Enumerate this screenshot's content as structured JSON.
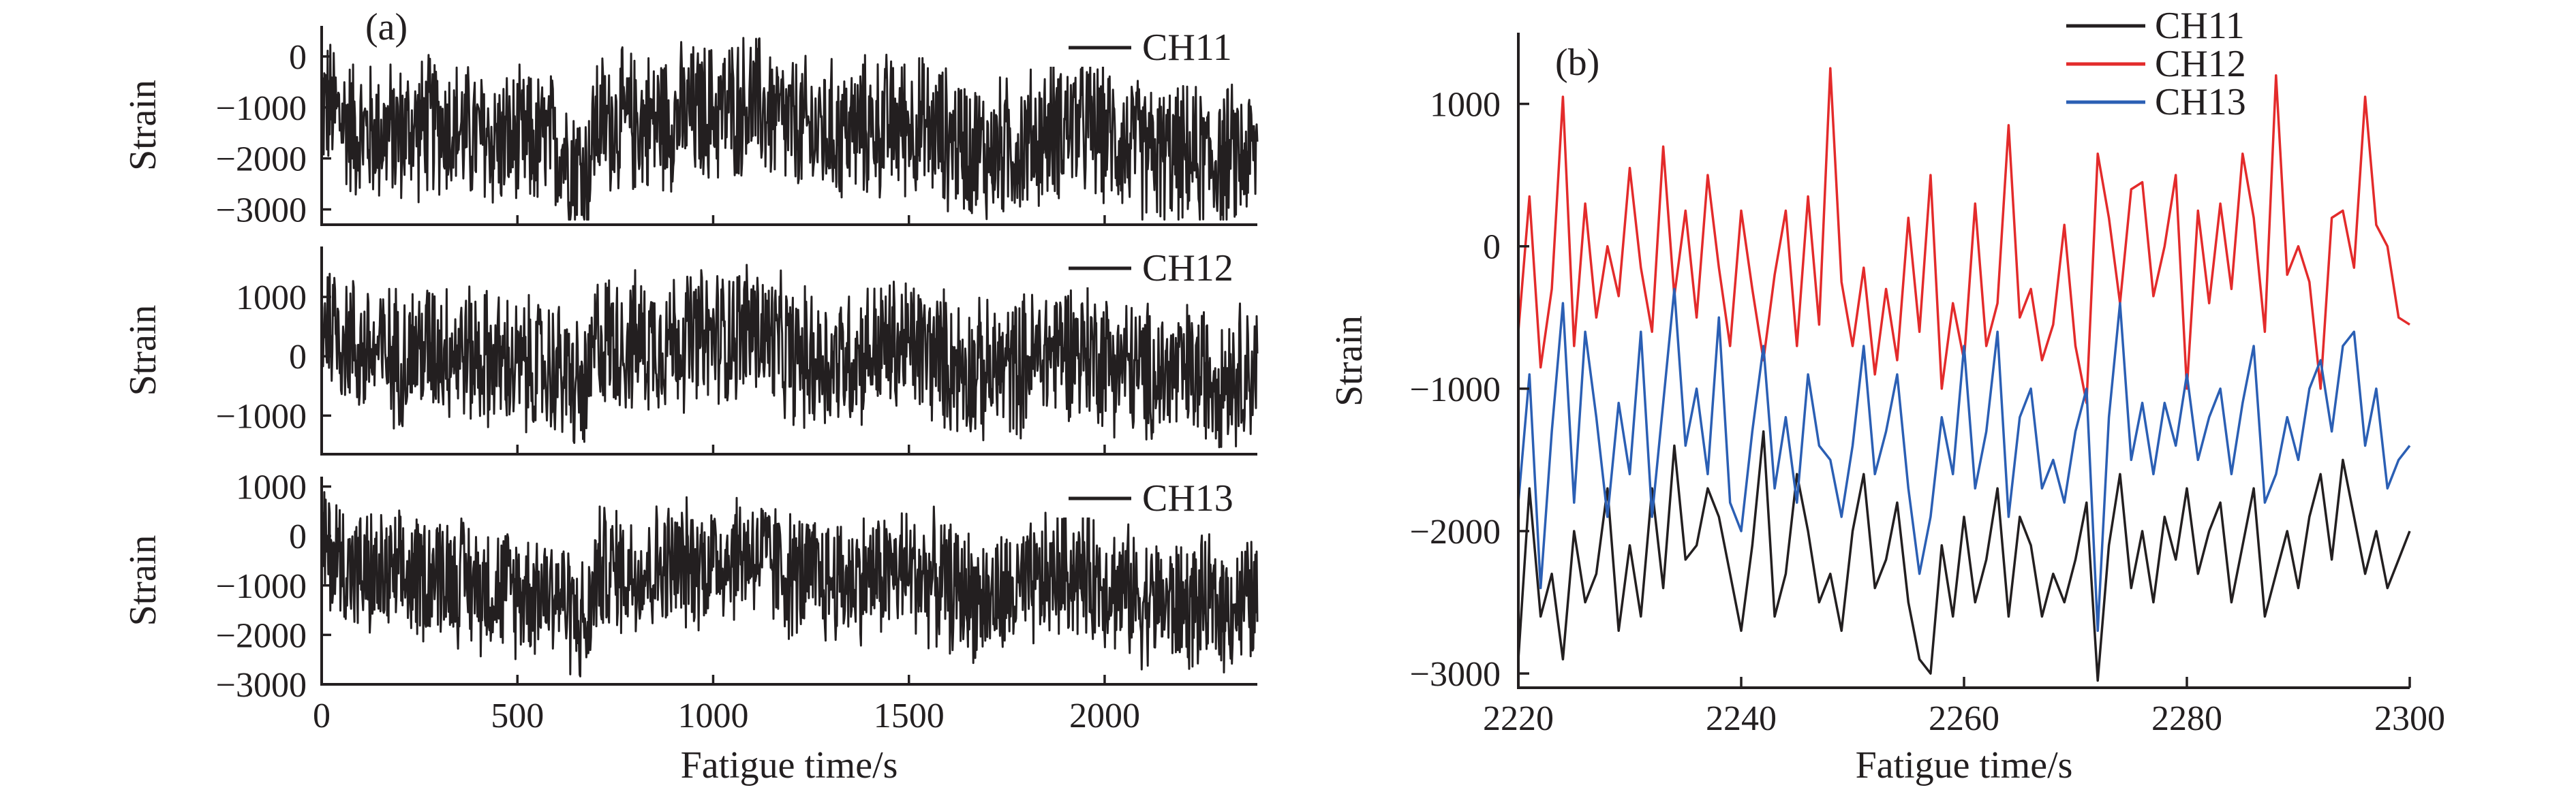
{
  "chart_data": [
    {
      "id": "a",
      "type": "line",
      "panel_label": "(a)",
      "xlabel": "Fatigue time/s",
      "xlim": [
        0,
        2390
      ],
      "xticks": [
        0,
        500,
        1000,
        1500,
        2000
      ],
      "subplots": [
        {
          "series_name": "CH11",
          "ylabel": "Strain",
          "ylim": [
            -3300,
            600
          ],
          "yticks": [
            -3000,
            -2000,
            -1000,
            0
          ],
          "tick_labels": [
            "−3000",
            "−2000",
            "−1000",
            "0"
          ],
          "color": "#231f20",
          "mean_trend": {
            "x": [
              0,
              100,
              200,
              300,
              400,
              500,
              600,
              680,
              700,
              800,
              900,
              1000,
              1100,
              1200,
              1300,
              1400,
              1500,
              1600,
              1700,
              1800,
              1900,
              2000,
              2100,
              2200,
              2300,
              2390
            ],
            "y": [
              -900,
              -1500,
              -1500,
              -1300,
              -1600,
              -1700,
              -1700,
              -2300,
              -1300,
              -1300,
              -1200,
              -1100,
              -900,
              -1400,
              -1500,
              -1400,
              -1300,
              -1600,
              -1900,
              -1700,
              -1300,
              -1500,
              -1900,
              -2000,
              -2000,
              -1900
            ]
          },
          "amplitude": 1600,
          "value_range": [
            -3200,
            400
          ]
        },
        {
          "series_name": "CH12",
          "ylabel": "Strain",
          "ylim": [
            -1650,
            1850
          ],
          "yticks": [
            -1000,
            0,
            1000
          ],
          "tick_labels": [
            "−1000",
            "0",
            "1000"
          ],
          "color": "#231f20",
          "mean_trend": {
            "x": [
              0,
              100,
              200,
              300,
              400,
              500,
              600,
              680,
              700,
              800,
              900,
              1000,
              1100,
              1200,
              1300,
              1400,
              1500,
              1600,
              1700,
              1800,
              1900,
              2000,
              2100,
              2200,
              2300,
              2390
            ],
            "y": [
              700,
              100,
              0,
              200,
              0,
              -200,
              -200,
              -700,
              300,
              200,
              300,
              300,
              500,
              0,
              -100,
              100,
              200,
              -100,
              -300,
              -100,
              200,
              0,
              -300,
              -300,
              -300,
              -200
            ]
          },
          "amplitude": 1350,
          "value_range": [
            -1600,
            1750
          ]
        },
        {
          "series_name": "CH13",
          "ylabel": "Strain",
          "ylim": [
            -3000,
            1200
          ],
          "yticks": [
            -3000,
            -2000,
            -1000,
            0,
            1000
          ],
          "tick_labels": [
            "−3000",
            "−2000",
            "−1000",
            "0",
            "1000"
          ],
          "color": "#231f20",
          "mean_trend": {
            "x": [
              0,
              100,
              200,
              300,
              400,
              500,
              600,
              680,
              700,
              800,
              900,
              1000,
              1100,
              1200,
              1300,
              1400,
              1500,
              1600,
              1700,
              1800,
              1900,
              2000,
              2100,
              2200,
              2300,
              2390
            ],
            "y": [
              -200,
              -800,
              -900,
              -700,
              -1000,
              -1100,
              -1100,
              -1900,
              -700,
              -700,
              -600,
              -500,
              -300,
              -800,
              -900,
              -800,
              -700,
              -1000,
              -1300,
              -1100,
              -700,
              -900,
              -1300,
              -1400,
              -1400,
              -1300
            ]
          },
          "amplitude": 1500,
          "value_range": [
            -2950,
            1000
          ]
        }
      ],
      "tick_labels_x": [
        "0",
        "500",
        "1000",
        "1500",
        "2000"
      ]
    },
    {
      "id": "b",
      "type": "line",
      "panel_label": "(b)",
      "xlabel": "Fatigue time/s",
      "ylabel": "Strain",
      "xlim": [
        2220,
        2300
      ],
      "ylim": [
        -3100,
        1500
      ],
      "xticks": [
        2220,
        2240,
        2260,
        2280,
        2300
      ],
      "yticks": [
        -3000,
        -2000,
        -1000,
        0,
        1000
      ],
      "tick_labels_x": [
        "2220",
        "2240",
        "2260",
        "2280",
        "2300"
      ],
      "tick_labels_y": [
        "−3000",
        "−2000",
        "−1000",
        "0",
        "1000"
      ],
      "legend_position": "top-right",
      "series": [
        {
          "name": "CH11",
          "color": "#231f20",
          "x": [
            2220,
            2221,
            2222,
            2223,
            2224,
            2225,
            2226,
            2227,
            2228,
            2229,
            2230,
            2231,
            2232,
            2233,
            2234,
            2235,
            2236,
            2237,
            2238,
            2239,
            2240,
            2241,
            2242,
            2243,
            2244,
            2245,
            2246,
            2247,
            2248,
            2249,
            2250,
            2251,
            2252,
            2253,
            2254,
            2255,
            2256,
            2257,
            2258,
            2259,
            2260,
            2261,
            2262,
            2263,
            2264,
            2265,
            2266,
            2267,
            2268,
            2269,
            2270,
            2271,
            2272,
            2273,
            2274,
            2275,
            2276,
            2277,
            2278,
            2279,
            2280,
            2281,
            2282,
            2283,
            2284,
            2285,
            2286,
            2287,
            2288,
            2289,
            2290,
            2291,
            2292,
            2293,
            2294,
            2295,
            2296,
            2297,
            2298,
            2299,
            2300
          ],
          "y": [
            -2900,
            -1700,
            -2600,
            -2300,
            -2900,
            -2000,
            -2500,
            -2300,
            -1700,
            -2700,
            -2100,
            -2600,
            -1700,
            -2400,
            -1400,
            -2200,
            -2100,
            -1700,
            -1900,
            -2300,
            -2700,
            -2100,
            -1300,
            -2600,
            -2300,
            -1600,
            -2000,
            -2500,
            -2300,
            -2700,
            -2000,
            -1600,
            -2400,
            -2200,
            -1800,
            -2500,
            -2900,
            -3000,
            -2100,
            -2600,
            -1900,
            -2500,
            -2200,
            -1700,
            -2600,
            -1900,
            -2100,
            -2600,
            -2300,
            -2500,
            -2200,
            -1800,
            -3050,
            -2100,
            -1600,
            -2400,
            -2000,
            -2500,
            -1900,
            -2200,
            -1700,
            -2300,
            -2000,
            -1800,
            -2500,
            -2100,
            -1700,
            -2600,
            -2300,
            -2000,
            -2400,
            -1900,
            -1600,
            -2200,
            -1500,
            -1900,
            -2300,
            -2000,
            -2400,
            -2200,
            -2000
          ]
        },
        {
          "name": "CH12",
          "color": "#e32b2b",
          "x": [
            2220,
            2221,
            2222,
            2223,
            2224,
            2225,
            2226,
            2227,
            2228,
            2229,
            2230,
            2231,
            2232,
            2233,
            2234,
            2235,
            2236,
            2237,
            2238,
            2239,
            2240,
            2241,
            2242,
            2243,
            2244,
            2245,
            2246,
            2247,
            2248,
            2249,
            2250,
            2251,
            2252,
            2253,
            2254,
            2255,
            2256,
            2257,
            2258,
            2259,
            2260,
            2261,
            2262,
            2263,
            2264,
            2265,
            2266,
            2267,
            2268,
            2269,
            2270,
            2271,
            2272,
            2273,
            2274,
            2275,
            2276,
            2277,
            2278,
            2279,
            2280,
            2281,
            2282,
            2283,
            2284,
            2285,
            2286,
            2287,
            2288,
            2289,
            2290,
            2291,
            2292,
            2293,
            2294,
            2295,
            2296,
            2297,
            2298,
            2299,
            2300
          ],
          "y": [
            -600,
            350,
            -850,
            -300,
            1050,
            -700,
            300,
            -500,
            0,
            -350,
            550,
            -150,
            -600,
            700,
            -350,
            250,
            -500,
            500,
            -150,
            -700,
            250,
            -300,
            -800,
            -200,
            250,
            -700,
            350,
            -550,
            1250,
            -250,
            -700,
            -150,
            -900,
            -300,
            -800,
            200,
            -600,
            500,
            -1000,
            -400,
            -800,
            300,
            -700,
            -400,
            850,
            -500,
            -300,
            -800,
            -550,
            150,
            -700,
            -1100,
            650,
            200,
            -400,
            400,
            450,
            -350,
            0,
            500,
            -1000,
            250,
            -400,
            300,
            -300,
            650,
            200,
            -600,
            1200,
            -200,
            0,
            -250,
            -1000,
            200,
            250,
            -150,
            1050,
            150,
            0,
            -500,
            -550
          ]
        },
        {
          "name": "CH13",
          "color": "#2b5fb4",
          "x": [
            2220,
            2221,
            2222,
            2223,
            2224,
            2225,
            2226,
            2227,
            2228,
            2229,
            2230,
            2231,
            2232,
            2233,
            2234,
            2235,
            2236,
            2237,
            2238,
            2239,
            2240,
            2241,
            2242,
            2243,
            2244,
            2245,
            2246,
            2247,
            2248,
            2249,
            2250,
            2251,
            2252,
            2253,
            2254,
            2255,
            2256,
            2257,
            2258,
            2259,
            2260,
            2261,
            2262,
            2263,
            2264,
            2265,
            2266,
            2267,
            2268,
            2269,
            2270,
            2271,
            2272,
            2273,
            2274,
            2275,
            2276,
            2277,
            2278,
            2279,
            2280,
            2281,
            2282,
            2283,
            2284,
            2285,
            2286,
            2287,
            2288,
            2289,
            2290,
            2291,
            2292,
            2293,
            2294,
            2295,
            2296,
            2297,
            2298,
            2299,
            2300
          ],
          "y": [
            -1800,
            -900,
            -2400,
            -1300,
            -400,
            -1800,
            -600,
            -1200,
            -1900,
            -1100,
            -1600,
            -600,
            -1900,
            -1100,
            -300,
            -1400,
            -1000,
            -1600,
            -500,
            -1800,
            -2000,
            -1300,
            -700,
            -1700,
            -1200,
            -1800,
            -900,
            -1400,
            -1500,
            -1900,
            -1400,
            -700,
            -1600,
            -1300,
            -900,
            -1700,
            -2300,
            -1900,
            -1200,
            -1600,
            -700,
            -1700,
            -1300,
            -600,
            -1900,
            -1200,
            -1000,
            -1700,
            -1500,
            -1800,
            -1300,
            -1000,
            -2700,
            -1200,
            -400,
            -1500,
            -1100,
            -1600,
            -1100,
            -1400,
            -900,
            -1500,
            -1200,
            -1000,
            -1600,
            -1100,
            -700,
            -1800,
            -1600,
            -1200,
            -1500,
            -1000,
            -800,
            -1300,
            -700,
            -600,
            -1400,
            -1000,
            -1700,
            -1500,
            -1400
          ]
        }
      ]
    }
  ]
}
